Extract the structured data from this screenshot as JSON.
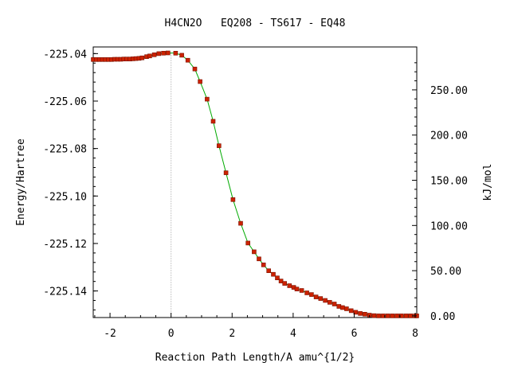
{
  "chart_data": {
    "type": "scatter",
    "title": "H4CN2O   EQ208 - TS617 - EQ48",
    "xlabel": "Reaction Path Length/A amu^{1/2}",
    "ylabel": "Energy/Hartree",
    "y2label": "kJ/mol",
    "xlim": [
      -2.55,
      8.05
    ],
    "ylim": [
      -225.1512,
      -225.0372
    ],
    "x_ticks": [
      -2,
      0,
      2,
      4,
      6,
      8
    ],
    "x_tick_labels": [
      "-2",
      "0",
      "2",
      "4",
      "6",
      "8"
    ],
    "y_ticks": [
      -225.04,
      -225.06,
      -225.08,
      -225.1,
      -225.12,
      -225.14
    ],
    "y_tick_labels": [
      "-225.04",
      "-225.06",
      "-225.08",
      "-225.10",
      "-225.12",
      "-225.14"
    ],
    "y2_zero_hartree": -225.1505,
    "y2_ticks": [
      0,
      50,
      100,
      150,
      200,
      250
    ],
    "y2_tick_labels": [
      "0.00",
      "50.00",
      "100.00",
      "150.00",
      "200.00",
      "250.00"
    ],
    "ts_x": 0.0,
    "grid": false,
    "colors": {
      "points": "#cc2200",
      "line": "#00aa00",
      "ts_line": "#999999"
    },
    "series": [
      {
        "x": [
          -2.55,
          -2.45,
          -2.35,
          -2.25,
          -2.15,
          -2.05,
          -1.95,
          -1.85,
          -1.75,
          -1.65,
          -1.55,
          -1.45,
          -1.35,
          -1.25,
          -1.15,
          -1.05,
          -0.95,
          -0.8,
          -0.7,
          -0.55,
          -0.4,
          -0.25,
          -0.1,
          0.15,
          0.35,
          0.55,
          0.78,
          0.95,
          1.18,
          1.38,
          1.57,
          1.8,
          2.03,
          2.28,
          2.52,
          2.72,
          2.88,
          3.03,
          3.2,
          3.35,
          3.48,
          3.6,
          3.72,
          3.88,
          4.02,
          4.12,
          4.28,
          4.45,
          4.6,
          4.75,
          4.9,
          5.05,
          5.2,
          5.35,
          5.5,
          5.62,
          5.75,
          5.9,
          6.05,
          6.2,
          6.35,
          6.5,
          6.65,
          6.8,
          6.95,
          7.1,
          7.25,
          7.4,
          7.55,
          7.7,
          7.85,
          8.0,
          8.05
        ],
        "y": [
          -225.0425,
          -225.0425,
          -225.0425,
          -225.0425,
          -225.0425,
          -225.0425,
          -225.0425,
          -225.0424,
          -225.0424,
          -225.0424,
          -225.0423,
          -225.0423,
          -225.0423,
          -225.0422,
          -225.0421,
          -225.042,
          -225.0418,
          -225.0413,
          -225.041,
          -225.0405,
          -225.04,
          -225.0398,
          -225.0397,
          -225.0398,
          -225.0407,
          -225.0428,
          -225.0465,
          -225.0518,
          -225.0592,
          -225.0685,
          -225.0788,
          -225.0902,
          -225.1015,
          -225.1115,
          -225.1198,
          -225.1235,
          -225.1265,
          -225.129,
          -225.1315,
          -225.133,
          -225.1345,
          -225.1358,
          -225.1368,
          -225.1378,
          -225.1385,
          -225.1392,
          -225.1398,
          -225.1408,
          -225.1415,
          -225.1425,
          -225.1432,
          -225.144,
          -225.1448,
          -225.1455,
          -225.1465,
          -225.147,
          -225.1475,
          -225.1483,
          -225.149,
          -225.1495,
          -225.1498,
          -225.1502,
          -225.1504,
          -225.1505,
          -225.1505,
          -225.1505,
          -225.1505,
          -225.1505,
          -225.1505,
          -225.1505,
          -225.1505,
          -225.1505,
          -225.1505
        ]
      }
    ]
  }
}
